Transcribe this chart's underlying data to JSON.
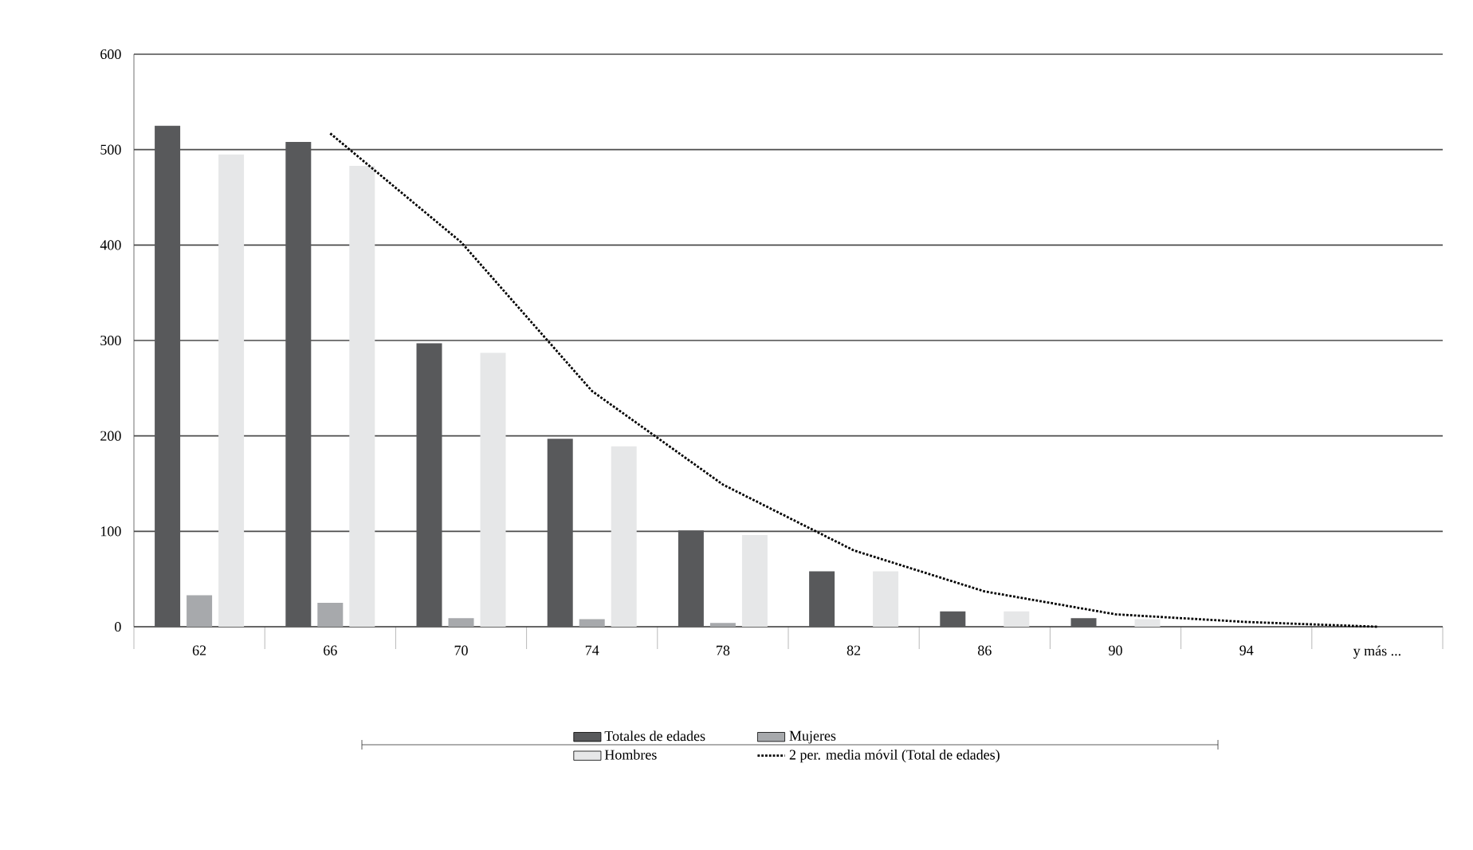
{
  "chart_data": {
    "type": "bar",
    "categories": [
      "62",
      "66",
      "70",
      "74",
      "78",
      "82",
      "86",
      "90",
      "94",
      "y más ..."
    ],
    "series": [
      {
        "name": "Totales de edades",
        "color": "#58595b",
        "values": [
          525,
          508,
          297,
          197,
          101,
          58,
          16,
          9,
          0,
          0
        ]
      },
      {
        "name": "Mujeres",
        "color": "#a7a9ac",
        "values": [
          33,
          25,
          9,
          8,
          4,
          0,
          0,
          0,
          0,
          0
        ]
      },
      {
        "name": "Hombres",
        "color": "#e6e7e8",
        "values": [
          495,
          483,
          287,
          189,
          96,
          58,
          16,
          8,
          0,
          0
        ]
      },
      {
        "name": "2 per. media móvil (Total de edades)",
        "type": "line",
        "color": "#000000",
        "line_style": "dotted",
        "values": [
          null,
          517,
          403,
          247,
          149,
          80,
          37,
          13,
          5,
          0
        ]
      }
    ],
    "ylim": [
      0,
      600
    ],
    "yticks": [
      0,
      100,
      200,
      300,
      400,
      500,
      600
    ],
    "grid": "y",
    "legend": "bottom"
  }
}
